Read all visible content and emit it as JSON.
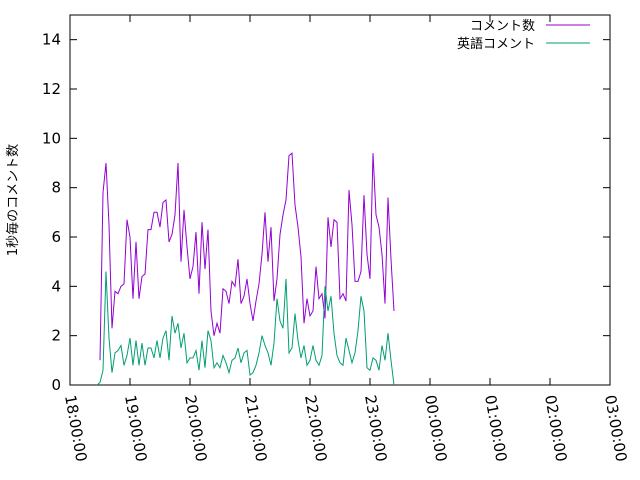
{
  "chart_data": {
    "type": "line",
    "ylabel": "1秒毎のコメント数",
    "ylim": [
      0,
      15
    ],
    "yticks": [
      0,
      2,
      4,
      6,
      8,
      10,
      12,
      14
    ],
    "xlim": [
      "18:00:00",
      "03:00:00"
    ],
    "xticks": [
      "18:00:00",
      "19:00:00",
      "20:00:00",
      "21:00:00",
      "22:00:00",
      "23:00:00",
      "00:00:00",
      "01:00:00",
      "02:00:00",
      "03:00:00"
    ],
    "legend_position": "top-right",
    "grid": false,
    "series": [
      {
        "name": "コメント数",
        "color": "#9400d3",
        "points": [
          [
            "18:30:00",
            1.0
          ],
          [
            "18:33:00",
            7.8
          ],
          [
            "18:36:00",
            9.0
          ],
          [
            "18:39:00",
            6.5
          ],
          [
            "18:42:00",
            2.3
          ],
          [
            "18:45:00",
            3.8
          ],
          [
            "18:48:00",
            3.7
          ],
          [
            "18:51:00",
            4.0
          ],
          [
            "18:54:00",
            4.1
          ],
          [
            "18:57:00",
            6.7
          ],
          [
            "19:00:00",
            6.0
          ],
          [
            "19:03:00",
            3.5
          ],
          [
            "19:06:00",
            5.8
          ],
          [
            "19:09:00",
            3.5
          ],
          [
            "19:12:00",
            4.4
          ],
          [
            "19:15:00",
            4.5
          ],
          [
            "19:18:00",
            6.3
          ],
          [
            "19:21:00",
            6.3
          ],
          [
            "19:24:00",
            7.0
          ],
          [
            "19:27:00",
            7.0
          ],
          [
            "19:30:00",
            6.4
          ],
          [
            "19:33:00",
            7.4
          ],
          [
            "19:36:00",
            7.5
          ],
          [
            "19:39:00",
            5.8
          ],
          [
            "19:42:00",
            6.1
          ],
          [
            "19:45:00",
            6.9
          ],
          [
            "19:48:00",
            9.0
          ],
          [
            "19:51:00",
            5.0
          ],
          [
            "19:54:00",
            7.1
          ],
          [
            "19:57:00",
            5.6
          ],
          [
            "20:00:00",
            4.3
          ],
          [
            "20:03:00",
            4.8
          ],
          [
            "20:06:00",
            6.2
          ],
          [
            "20:09:00",
            3.7
          ],
          [
            "20:12:00",
            6.6
          ],
          [
            "20:15:00",
            4.7
          ],
          [
            "20:18:00",
            6.3
          ],
          [
            "20:21:00",
            3.0
          ],
          [
            "20:24:00",
            2.0
          ],
          [
            "20:27:00",
            2.5
          ],
          [
            "20:30:00",
            2.1
          ],
          [
            "20:33:00",
            3.9
          ],
          [
            "20:36:00",
            3.8
          ],
          [
            "20:39:00",
            3.3
          ],
          [
            "20:42:00",
            4.2
          ],
          [
            "20:45:00",
            4.0
          ],
          [
            "20:48:00",
            5.1
          ],
          [
            "20:51:00",
            3.3
          ],
          [
            "20:54:00",
            3.6
          ],
          [
            "20:57:00",
            4.3
          ],
          [
            "21:00:00",
            3.3
          ],
          [
            "21:03:00",
            2.6
          ],
          [
            "21:06:00",
            3.4
          ],
          [
            "21:09:00",
            4.1
          ],
          [
            "21:12:00",
            5.3
          ],
          [
            "21:15:00",
            7.0
          ],
          [
            "21:18:00",
            5.0
          ],
          [
            "21:21:00",
            6.4
          ],
          [
            "21:24:00",
            3.4
          ],
          [
            "21:27:00",
            4.3
          ],
          [
            "21:30:00",
            6.1
          ],
          [
            "21:33:00",
            6.9
          ],
          [
            "21:36:00",
            7.5
          ],
          [
            "21:39:00",
            9.3
          ],
          [
            "21:42:00",
            9.4
          ],
          [
            "21:45:00",
            7.3
          ],
          [
            "21:48:00",
            6.4
          ],
          [
            "21:51:00",
            5.2
          ],
          [
            "21:54:00",
            2.5
          ],
          [
            "21:57:00",
            3.5
          ],
          [
            "22:00:00",
            2.8
          ],
          [
            "22:03:00",
            3.0
          ],
          [
            "22:06:00",
            4.8
          ],
          [
            "22:09:00",
            3.5
          ],
          [
            "22:12:00",
            3.7
          ],
          [
            "22:15:00",
            2.7
          ],
          [
            "22:18:00",
            6.8
          ],
          [
            "22:21:00",
            5.6
          ],
          [
            "22:24:00",
            6.7
          ],
          [
            "22:27:00",
            6.6
          ],
          [
            "22:30:00",
            3.5
          ],
          [
            "22:33:00",
            3.7
          ],
          [
            "22:36:00",
            3.4
          ],
          [
            "22:39:00",
            7.9
          ],
          [
            "22:42:00",
            6.5
          ],
          [
            "22:45:00",
            4.2
          ],
          [
            "22:48:00",
            4.2
          ],
          [
            "22:51:00",
            4.6
          ],
          [
            "22:54:00",
            7.7
          ],
          [
            "22:57:00",
            5.3
          ],
          [
            "23:00:00",
            4.3
          ],
          [
            "23:03:00",
            9.4
          ],
          [
            "23:06:00",
            6.9
          ],
          [
            "23:09:00",
            6.4
          ],
          [
            "23:12:00",
            5.3
          ],
          [
            "23:15:00",
            3.3
          ],
          [
            "23:18:00",
            7.6
          ],
          [
            "23:21:00",
            5.1
          ],
          [
            "23:24:00",
            3.0
          ]
        ]
      },
      {
        "name": "英語コメント",
        "color": "#009e73",
        "points": [
          [
            "18:27:00",
            0.0
          ],
          [
            "18:30:00",
            0.1
          ],
          [
            "18:33:00",
            0.6
          ],
          [
            "18:36:00",
            4.6
          ],
          [
            "18:39:00",
            1.9
          ],
          [
            "18:42:00",
            0.5
          ],
          [
            "18:45:00",
            1.3
          ],
          [
            "18:48:00",
            1.4
          ],
          [
            "18:51:00",
            1.6
          ],
          [
            "18:54:00",
            0.8
          ],
          [
            "18:57:00",
            1.2
          ],
          [
            "19:00:00",
            1.9
          ],
          [
            "19:03:00",
            0.8
          ],
          [
            "19:06:00",
            1.8
          ],
          [
            "19:09:00",
            0.8
          ],
          [
            "19:12:00",
            1.7
          ],
          [
            "19:15:00",
            0.8
          ],
          [
            "19:18:00",
            1.5
          ],
          [
            "19:21:00",
            1.5
          ],
          [
            "19:24:00",
            1.1
          ],
          [
            "19:27:00",
            1.8
          ],
          [
            "19:30:00",
            1.1
          ],
          [
            "19:33:00",
            1.9
          ],
          [
            "19:36:00",
            2.2
          ],
          [
            "19:39:00",
            1.0
          ],
          [
            "19:42:00",
            2.8
          ],
          [
            "19:45:00",
            2.1
          ],
          [
            "19:48:00",
            2.5
          ],
          [
            "19:51:00",
            1.5
          ],
          [
            "19:54:00",
            2.1
          ],
          [
            "19:57:00",
            0.9
          ],
          [
            "20:00:00",
            1.1
          ],
          [
            "20:03:00",
            1.1
          ],
          [
            "20:06:00",
            1.4
          ],
          [
            "20:09:00",
            0.6
          ],
          [
            "20:12:00",
            1.8
          ],
          [
            "20:15:00",
            0.7
          ],
          [
            "20:18:00",
            2.2
          ],
          [
            "20:21:00",
            1.8
          ],
          [
            "20:24:00",
            0.7
          ],
          [
            "20:27:00",
            0.9
          ],
          [
            "20:30:00",
            0.7
          ],
          [
            "20:33:00",
            1.2
          ],
          [
            "20:36:00",
            0.9
          ],
          [
            "20:39:00",
            0.5
          ],
          [
            "20:42:00",
            1.0
          ],
          [
            "20:45:00",
            1.1
          ],
          [
            "20:48:00",
            1.5
          ],
          [
            "20:51:00",
            0.9
          ],
          [
            "20:54:00",
            1.3
          ],
          [
            "20:57:00",
            1.4
          ],
          [
            "21:00:00",
            0.4
          ],
          [
            "21:03:00",
            0.5
          ],
          [
            "21:06:00",
            0.8
          ],
          [
            "21:09:00",
            1.3
          ],
          [
            "21:12:00",
            2.0
          ],
          [
            "21:15:00",
            1.6
          ],
          [
            "21:18:00",
            1.3
          ],
          [
            "21:21:00",
            0.8
          ],
          [
            "21:24:00",
            1.7
          ],
          [
            "21:27:00",
            3.5
          ],
          [
            "21:30:00",
            2.6
          ],
          [
            "21:33:00",
            2.3
          ],
          [
            "21:36:00",
            4.3
          ],
          [
            "21:39:00",
            1.3
          ],
          [
            "21:42:00",
            1.5
          ],
          [
            "21:45:00",
            2.9
          ],
          [
            "21:48:00",
            1.8
          ],
          [
            "21:51:00",
            1.1
          ],
          [
            "21:54:00",
            1.6
          ],
          [
            "21:57:00",
            0.8
          ],
          [
            "22:00:00",
            1.0
          ],
          [
            "22:03:00",
            1.6
          ],
          [
            "22:06:00",
            1.0
          ],
          [
            "22:09:00",
            0.8
          ],
          [
            "22:12:00",
            1.2
          ],
          [
            "22:15:00",
            4.0
          ],
          [
            "22:18:00",
            3.0
          ],
          [
            "22:21:00",
            3.6
          ],
          [
            "22:24:00",
            2.1
          ],
          [
            "22:27:00",
            1.2
          ],
          [
            "22:30:00",
            0.9
          ],
          [
            "22:33:00",
            0.8
          ],
          [
            "22:36:00",
            1.9
          ],
          [
            "22:39:00",
            1.4
          ],
          [
            "22:42:00",
            0.9
          ],
          [
            "22:45:00",
            1.3
          ],
          [
            "22:48:00",
            2.2
          ],
          [
            "22:51:00",
            3.6
          ],
          [
            "22:54:00",
            3.0
          ],
          [
            "22:57:00",
            0.7
          ],
          [
            "23:00:00",
            0.6
          ],
          [
            "23:03:00",
            1.1
          ],
          [
            "23:06:00",
            1.0
          ],
          [
            "23:09:00",
            0.6
          ],
          [
            "23:12:00",
            1.6
          ],
          [
            "23:15:00",
            1.0
          ],
          [
            "23:18:00",
            2.1
          ],
          [
            "23:21:00",
            1.0
          ],
          [
            "23:24:00",
            0.0
          ]
        ]
      }
    ]
  }
}
